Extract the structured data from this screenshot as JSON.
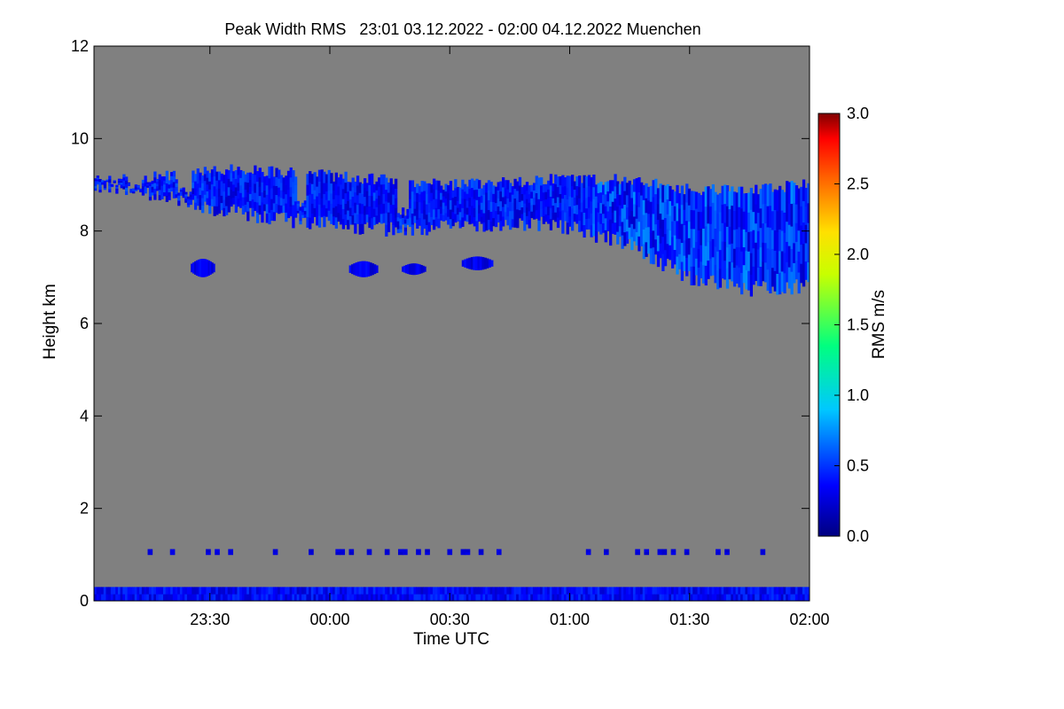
{
  "chart_data": {
    "type": "heatmap",
    "title": "Peak Width RMS   23:01 03.12.2022 - 02:00 04.12.2022 Muenchen",
    "xlabel": "Time UTC",
    "ylabel": "Height km",
    "x_start": "23:01",
    "x_end": "02:00",
    "x_tick_labels": [
      "23:30",
      "00:00",
      "00:30",
      "01:00",
      "01:30",
      "02:00"
    ],
    "x_tick_hours": [
      23.5,
      24.0,
      24.5,
      25.0,
      25.5,
      26.0
    ],
    "x_range_hours": [
      23.0167,
      26.0
    ],
    "ylim": [
      0,
      12
    ],
    "y_ticks": [
      0,
      2,
      4,
      6,
      8,
      10,
      12
    ],
    "colorbar": {
      "label": "RMS m/s",
      "range": [
        0.0,
        3.0
      ],
      "ticks": [
        0.0,
        0.5,
        1.0,
        1.5,
        2.0,
        2.5,
        3.0
      ],
      "tick_labels": [
        "0.0",
        "0.5",
        "1.0",
        "1.5",
        "2.0",
        "2.5",
        "3.0"
      ],
      "colormap": "rainbow"
    },
    "background_color": "#808080",
    "echo_layers": [
      {
        "name": "cirrus layer",
        "rms_range": [
          0.2,
          0.6
        ],
        "time_hours": [
          23.0167,
          23.25,
          23.5,
          23.75,
          24.0,
          24.25,
          24.5,
          24.75,
          25.0,
          25.25,
          25.5,
          25.75,
          26.0
        ],
        "top_km": [
          9.1,
          9.15,
          9.35,
          9.3,
          9.2,
          9.1,
          9.0,
          9.05,
          9.15,
          9.1,
          8.9,
          8.9,
          9.0
        ],
        "base_km": [
          8.95,
          8.8,
          8.5,
          8.3,
          8.15,
          8.05,
          8.1,
          8.2,
          8.1,
          7.7,
          7.0,
          6.75,
          6.8
        ]
      },
      {
        "name": "isolated patches",
        "rms_range": [
          0.2,
          0.4
        ],
        "patches": [
          {
            "time_hours": [
              23.42,
              23.52
            ],
            "base_km": 7.0,
            "top_km": 7.4
          },
          {
            "time_hours": [
              24.08,
              24.2
            ],
            "base_km": 7.0,
            "top_km": 7.35
          },
          {
            "time_hours": [
              24.3,
              24.4
            ],
            "base_km": 7.05,
            "top_km": 7.3
          },
          {
            "time_hours": [
              24.55,
              24.68
            ],
            "base_km": 7.15,
            "top_km": 7.45
          }
        ]
      },
      {
        "name": "boundary layer echo",
        "rms_range": [
          0.2,
          0.5
        ],
        "time_hours": [
          23.0167,
          26.0
        ],
        "base_km": 0.0,
        "top_km": 0.3
      },
      {
        "name": "sparse echoes",
        "rms_range": [
          0.2,
          0.3
        ],
        "time_hours": [
          23.0167,
          26.0
        ],
        "base_km": 1.0,
        "top_km": 1.12
      }
    ]
  }
}
